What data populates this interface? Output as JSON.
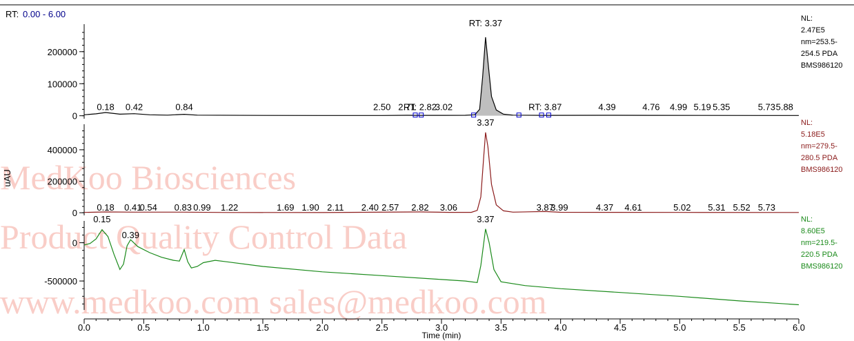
{
  "header": {
    "rt_label": "RT:",
    "rt_range": "0.00 - 6.00"
  },
  "axes": {
    "xlabel": "Time (min)",
    "ylabel": "uAU"
  },
  "watermark": {
    "line1": "MedKoo Biosciences",
    "line2": "Product Quality Control Data",
    "line3": "www.medkoo.com   sales@medkoo.com"
  },
  "colors": {
    "panel1": "#000000",
    "panel2": "#8b1a1a",
    "panel3": "#1a8a1a",
    "peak_fill": "#bfbfbf",
    "header_range": "#00008b",
    "watermark": "#eb5a46",
    "marker": "#0000cc"
  },
  "chart_data": [
    {
      "type": "line",
      "name": "panel-1",
      "xlim": [
        0,
        6
      ],
      "ylim": [
        -5000,
        275000
      ],
      "yticks": [
        0,
        100000,
        200000
      ],
      "info": [
        "NL:",
        "2.47E5",
        "nm=253.5-",
        "254.5  PDA",
        "BMS986120"
      ],
      "points": [
        [
          0,
          3000
        ],
        [
          0.1,
          6000
        ],
        [
          0.18,
          10000
        ],
        [
          0.3,
          5000
        ],
        [
          0.42,
          6500
        ],
        [
          0.55,
          3000
        ],
        [
          0.7,
          2000
        ],
        [
          0.84,
          4500
        ],
        [
          0.95,
          2000
        ],
        [
          1.5,
          1000
        ],
        [
          2.0,
          800
        ],
        [
          2.5,
          900
        ],
        [
          2.71,
          1500
        ],
        [
          2.82,
          1200
        ],
        [
          3.02,
          1300
        ],
        [
          3.2,
          1500
        ],
        [
          3.28,
          3000
        ],
        [
          3.32,
          20000
        ],
        [
          3.345,
          120000
        ],
        [
          3.37,
          245000
        ],
        [
          3.39,
          170000
        ],
        [
          3.42,
          60000
        ],
        [
          3.46,
          18000
        ],
        [
          3.52,
          5000
        ],
        [
          3.6,
          2000
        ],
        [
          3.87,
          1200
        ],
        [
          4.39,
          1500
        ],
        [
          4.76,
          1200
        ],
        [
          5.19,
          1000
        ],
        [
          5.73,
          900
        ],
        [
          6.0,
          800
        ]
      ],
      "annotations": [
        {
          "x": 0.18,
          "label": "0.18"
        },
        {
          "x": 0.42,
          "label": "0.42"
        },
        {
          "x": 0.84,
          "label": "0.84"
        },
        {
          "x": 2.5,
          "label": "2.50"
        },
        {
          "x": 2.71,
          "label": "2.71"
        },
        {
          "x": 2.82,
          "label": "RT: 2.82"
        },
        {
          "x": 3.02,
          "label": "3.02"
        },
        {
          "x": 3.37,
          "label": "RT: 3.37"
        },
        {
          "x": 3.87,
          "label": "RT: 3.87"
        },
        {
          "x": 4.39,
          "label": "4.39"
        },
        {
          "x": 4.76,
          "label": "4.76"
        },
        {
          "x": 4.99,
          "label": "4.99"
        },
        {
          "x": 5.19,
          "label": "5.19"
        },
        {
          "x": 5.35,
          "label": "5.35"
        },
        {
          "x": 5.73,
          "label": "5.73"
        },
        {
          "x": 5.88,
          "label": "5.88"
        }
      ],
      "peak_fill_range": [
        3.28,
        3.65
      ],
      "markers": [
        2.78,
        2.83,
        3.27,
        3.65,
        3.84,
        3.9
      ]
    },
    {
      "type": "line",
      "name": "panel-2",
      "xlim": [
        0,
        6
      ],
      "ylim": [
        -8000,
        540000
      ],
      "yticks": [
        0,
        200000,
        400000
      ],
      "info": [
        "NL:",
        "5.18E5",
        "nm=279.5-",
        "280.5  PDA",
        "BMS986120"
      ],
      "points": [
        [
          0,
          2000
        ],
        [
          0.18,
          5000
        ],
        [
          0.41,
          4000
        ],
        [
          0.83,
          4000
        ],
        [
          1.2,
          1500
        ],
        [
          2.0,
          1200
        ],
        [
          2.82,
          5000
        ],
        [
          3.06,
          2500
        ],
        [
          3.25,
          2500
        ],
        [
          3.3,
          15000
        ],
        [
          3.33,
          100000
        ],
        [
          3.355,
          360000
        ],
        [
          3.37,
          510000
        ],
        [
          3.39,
          420000
        ],
        [
          3.42,
          180000
        ],
        [
          3.46,
          50000
        ],
        [
          3.52,
          12000
        ],
        [
          3.6,
          4000
        ],
        [
          3.87,
          8000
        ],
        [
          4.0,
          3000
        ],
        [
          5.0,
          2000
        ],
        [
          6.0,
          1500
        ]
      ],
      "annotations": [
        {
          "x": 0.18,
          "label": "0.18"
        },
        {
          "x": 0.41,
          "label": "0.41"
        },
        {
          "x": 0.54,
          "label": "0.54"
        },
        {
          "x": 0.83,
          "label": "0.83"
        },
        {
          "x": 0.99,
          "label": "0.99"
        },
        {
          "x": 1.22,
          "label": "1.22"
        },
        {
          "x": 1.69,
          "label": "1.69"
        },
        {
          "x": 1.9,
          "label": "1.90"
        },
        {
          "x": 2.11,
          "label": "2.11"
        },
        {
          "x": 2.4,
          "label": "2.40"
        },
        {
          "x": 2.57,
          "label": "2.57"
        },
        {
          "x": 2.82,
          "label": "2.82"
        },
        {
          "x": 3.06,
          "label": "3.06"
        },
        {
          "x": 3.37,
          "label": "3.37"
        },
        {
          "x": 3.87,
          "label": "3.87"
        },
        {
          "x": 3.99,
          "label": "3.99"
        },
        {
          "x": 4.37,
          "label": "4.37"
        },
        {
          "x": 4.61,
          "label": "4.61"
        },
        {
          "x": 5.02,
          "label": "5.02"
        },
        {
          "x": 5.31,
          "label": "5.31"
        },
        {
          "x": 5.52,
          "label": "5.52"
        },
        {
          "x": 5.73,
          "label": "5.73"
        }
      ]
    },
    {
      "type": "line",
      "name": "panel-3",
      "xlim": [
        0,
        6
      ],
      "ylim": [
        -860000,
        240000
      ],
      "yticks": [
        0,
        -500000
      ],
      "info": [
        "NL:",
        "8.60E5",
        "nm=219.5-",
        "220.5  PDA",
        "BMS986120"
      ],
      "points": [
        [
          0,
          -30000
        ],
        [
          0.05,
          -10000
        ],
        [
          0.1,
          50000
        ],
        [
          0.15,
          170000
        ],
        [
          0.2,
          80000
        ],
        [
          0.25,
          -150000
        ],
        [
          0.3,
          -350000
        ],
        [
          0.33,
          -280000
        ],
        [
          0.36,
          -40000
        ],
        [
          0.39,
          40000
        ],
        [
          0.45,
          -50000
        ],
        [
          0.55,
          -130000
        ],
        [
          0.65,
          -190000
        ],
        [
          0.75,
          -230000
        ],
        [
          0.8,
          -240000
        ],
        [
          0.84,
          -90000
        ],
        [
          0.87,
          -250000
        ],
        [
          0.9,
          -330000
        ],
        [
          0.95,
          -310000
        ],
        [
          1.0,
          -260000
        ],
        [
          1.1,
          -230000
        ],
        [
          1.2,
          -250000
        ],
        [
          1.5,
          -310000
        ],
        [
          2.0,
          -380000
        ],
        [
          2.5,
          -430000
        ],
        [
          3.0,
          -480000
        ],
        [
          3.2,
          -500000
        ],
        [
          3.3,
          -520000
        ],
        [
          3.33,
          -300000
        ],
        [
          3.37,
          180000
        ],
        [
          3.4,
          0
        ],
        [
          3.44,
          -350000
        ],
        [
          3.5,
          -510000
        ],
        [
          3.7,
          -560000
        ],
        [
          4.0,
          -600000
        ],
        [
          4.5,
          -650000
        ],
        [
          5.0,
          -700000
        ],
        [
          5.5,
          -760000
        ],
        [
          5.8,
          -790000
        ],
        [
          6.0,
          -810000
        ]
      ],
      "annotations": [
        {
          "x": 0.15,
          "label": "0.15"
        },
        {
          "x": 0.39,
          "label": "0.39"
        },
        {
          "x": 3.37,
          "label": "3.37"
        }
      ]
    }
  ],
  "xticks": [
    "0.0",
    "0.5",
    "1.0",
    "1.5",
    "2.0",
    "2.5",
    "3.0",
    "3.5",
    "4.0",
    "4.5",
    "5.0",
    "5.5",
    "6.0"
  ]
}
